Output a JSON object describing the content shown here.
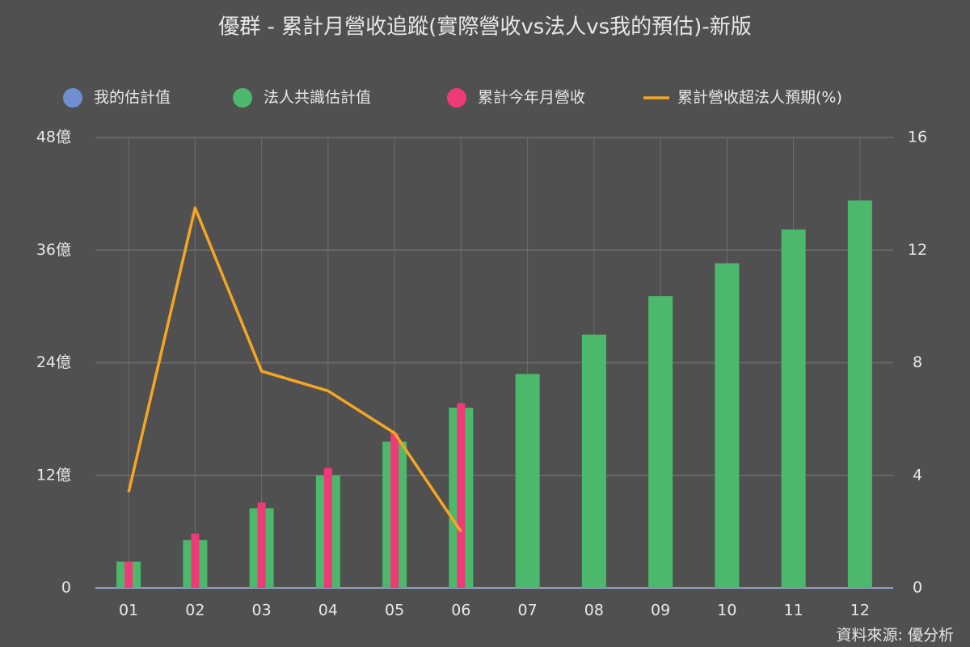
{
  "chart_data": {
    "type": "bar",
    "title": "優群 - 累計月營收追蹤(實際營收vs法人vs我的預估)-新版",
    "source": "資料來源: 優分析",
    "categories": [
      "01",
      "02",
      "03",
      "04",
      "05",
      "06",
      "07",
      "08",
      "09",
      "10",
      "11",
      "12"
    ],
    "series": [
      {
        "name": "我的估計值",
        "type": "bar",
        "color": "#6f8fd0",
        "values": [
          null,
          null,
          null,
          null,
          null,
          null,
          null,
          null,
          null,
          null,
          null,
          null
        ]
      },
      {
        "name": "法人共識估計值",
        "type": "bar",
        "color": "#4cb86b",
        "values": [
          2.8,
          5.1,
          8.5,
          12.0,
          15.6,
          19.2,
          22.8,
          27.0,
          31.1,
          34.6,
          38.2,
          41.3
        ]
      },
      {
        "name": "累計今年月營收",
        "type": "bar",
        "color": "#ee3a76",
        "values": [
          2.8,
          5.8,
          9.1,
          12.8,
          16.5,
          19.7,
          null,
          null,
          null,
          null,
          null,
          null
        ]
      },
      {
        "name": "累計營收超法人預期(%)",
        "type": "line",
        "axis": "y2",
        "color": "#f5a623",
        "values": [
          3.4,
          13.5,
          7.7,
          7.0,
          5.5,
          2.0,
          null,
          null,
          null,
          null,
          null,
          null
        ]
      }
    ],
    "ylim": [
      0,
      48
    ],
    "yticks": [
      0,
      {
        "value": 12,
        "label": "12億"
      },
      {
        "value": 24,
        "label": "24億"
      },
      {
        "value": 36,
        "label": "36億"
      },
      {
        "value": 48,
        "label": "48億"
      }
    ],
    "y2lim": [
      0,
      16
    ],
    "y2ticks": [
      0,
      4,
      8,
      12,
      16
    ],
    "grid": true,
    "legend": "top"
  }
}
